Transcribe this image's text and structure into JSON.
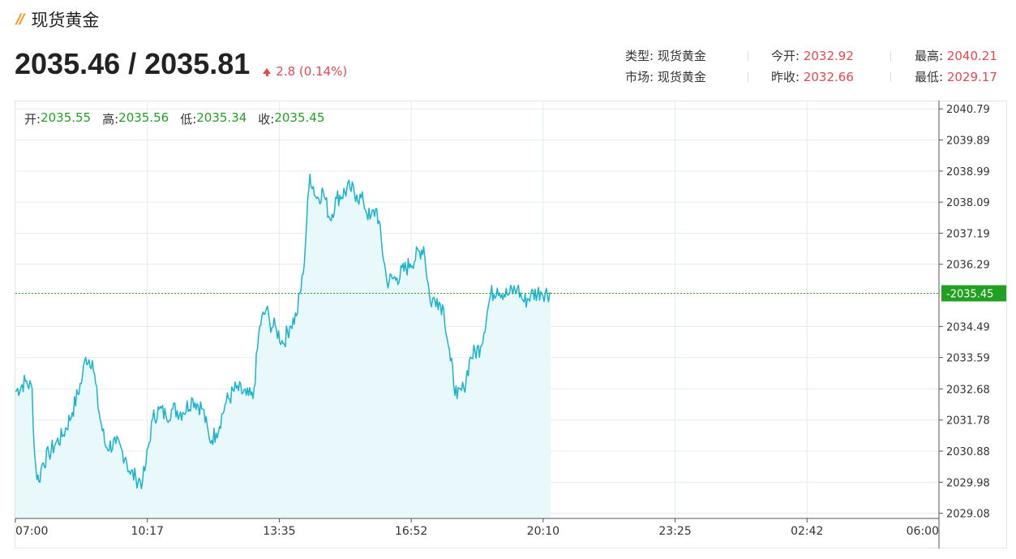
{
  "header": {
    "title": "现货黄金"
  },
  "price": {
    "main": "2035.46 / 2035.81",
    "change": "2.8 (0.14%)"
  },
  "stats": {
    "type_label": "类型:",
    "type_value": "现货黄金",
    "market_label": "市场:",
    "market_value": "现货黄金",
    "open_today_label": "今开:",
    "open_today_value": "2032.92",
    "prev_close_label": "昨收:",
    "prev_close_value": "2032.66",
    "high_label": "最高:",
    "high_value": "2040.21",
    "low_label": "最低:",
    "low_value": "2029.17"
  },
  "ohlc": {
    "open_label": "开:",
    "open_value": "2035.55",
    "high_label": "高:",
    "high_value": "2035.56",
    "low_label": "低:",
    "low_value": "2035.34",
    "close_label": "收:",
    "close_value": "2035.45"
  },
  "colors": {
    "accent": "#ff8a00",
    "up": "#e8474f",
    "line": "#1ab3cf",
    "fill": "#e8f8fb",
    "current": "#21a021",
    "grid": "#e3ecf1"
  },
  "chart_data": {
    "type": "area",
    "x_ticks": [
      "07:00",
      "10:17",
      "13:35",
      "16:52",
      "20:10",
      "23:25",
      "02:42",
      "06:00"
    ],
    "y_ticks": [
      2040.79,
      2039.89,
      2038.99,
      2038.09,
      2037.19,
      2036.29,
      2034.49,
      2033.59,
      2032.68,
      2031.78,
      2030.88,
      2029.98,
      2029.08
    ],
    "current_price": "2035.45",
    "ylim": [
      2028.93,
      2041.03
    ],
    "x_range_minutes": [
      0,
      1380
    ],
    "grid": true,
    "series": [
      {
        "x": [
          0,
          15,
          25,
          28,
          31,
          35,
          40,
          50,
          60,
          70,
          85,
          100,
          105,
          115,
          125,
          135,
          150,
          165,
          170,
          180,
          190,
          195,
          205,
          215,
          225,
          235,
          250,
          265,
          280,
          290,
          300,
          315,
          330,
          345,
          355,
          365,
          375,
          380,
          390,
          400,
          410,
          420,
          430,
          440,
          450,
          460,
          470,
          480,
          500,
          510,
          520,
          530,
          540,
          555,
          570,
          590,
          610,
          620,
          630,
          640,
          650,
          660,
          670,
          680,
          695,
          710,
          720,
          735,
          750,
          760,
          770,
          785,
          800
        ],
        "values": [
          2032.6,
          2032.9,
          2032.7,
          2031.0,
          2030.3,
          2030.0,
          2030.5,
          2030.8,
          2031.1,
          2031.3,
          2032.0,
          2033.0,
          2033.6,
          2033.5,
          2032.0,
          2031.0,
          2031.1,
          2030.7,
          2030.3,
          2030.1,
          2030.0,
          2030.5,
          2031.8,
          2032.1,
          2031.9,
          2032.1,
          2032.0,
          2032.4,
          2032.1,
          2031.2,
          2031.4,
          2032.3,
          2032.7,
          2032.5,
          2032.4,
          2034.5,
          2035.0,
          2034.6,
          2034.4,
          2034.0,
          2034.5,
          2034.8,
          2036.0,
          2038.9,
          2038.2,
          2038.4,
          2037.6,
          2038.2,
          2038.5,
          2038.3,
          2038.1,
          2037.6,
          2037.9,
          2035.8,
          2035.9,
          2036.3,
          2036.8,
          2035.2,
          2035.3,
          2035.0,
          2033.5,
          2032.4,
          2032.7,
          2033.6,
          2033.9,
          2035.4,
          2035.6,
          2035.4,
          2035.6,
          2035.2,
          2035.4,
          2035.5,
          2035.45
        ]
      }
    ]
  }
}
